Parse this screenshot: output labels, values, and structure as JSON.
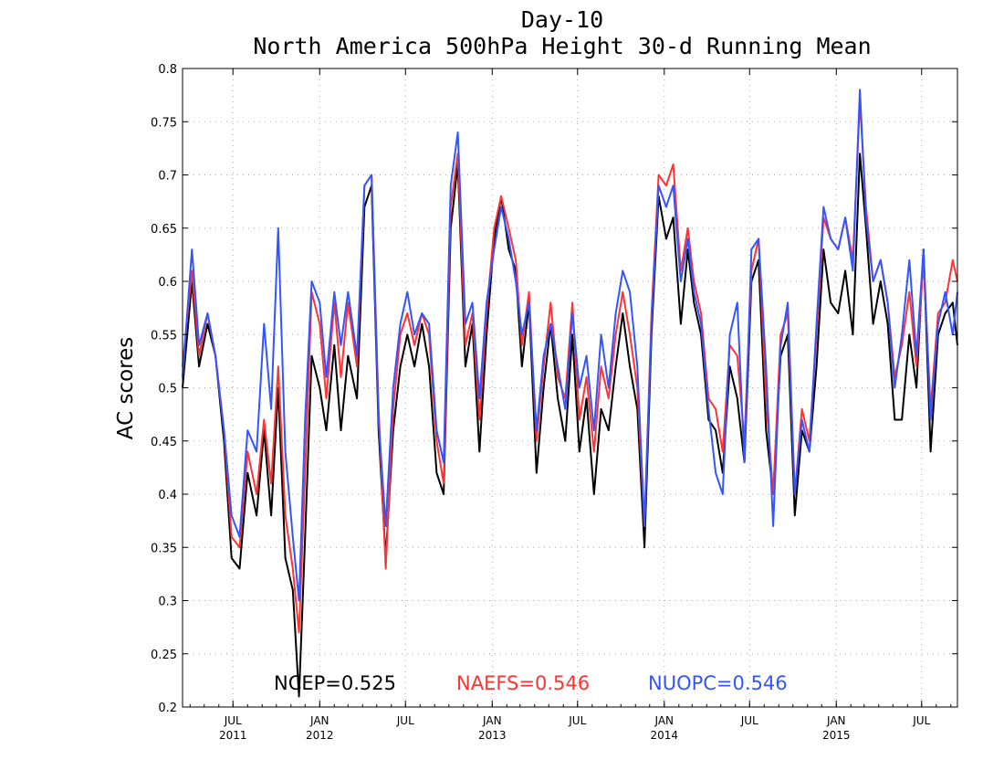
{
  "chart_data": {
    "type": "line",
    "title": "Day-10",
    "subtitle": "North America 500hPa Height 30-d Running Mean",
    "ylabel": "AC scores",
    "xlabel": "",
    "ylim": [
      0.2,
      0.8
    ],
    "y_ticks": [
      "0.2",
      "0.25",
      "0.3",
      "0.35",
      "0.4",
      "0.45",
      "0.5",
      "0.55",
      "0.6",
      "0.65",
      "0.7",
      "0.75",
      "0.8"
    ],
    "x_range": [
      "2011-03-16",
      "2015-09-15"
    ],
    "x_ticks": [
      {
        "date": "2011-07-01",
        "month": "JUL",
        "year": "2011"
      },
      {
        "date": "2012-01-01",
        "month": "JAN",
        "year": "2012"
      },
      {
        "date": "2012-07-01",
        "month": "JUL",
        "year": ""
      },
      {
        "date": "2013-01-01",
        "month": "JAN",
        "year": "2013"
      },
      {
        "date": "2013-07-01",
        "month": "JUL",
        "year": ""
      },
      {
        "date": "2014-01-01",
        "month": "JAN",
        "year": "2014"
      },
      {
        "date": "2014-07-01",
        "month": "JUL",
        "year": ""
      },
      {
        "date": "2015-01-01",
        "month": "JAN",
        "year": "2015"
      },
      {
        "date": "2015-07-01",
        "month": "JUL",
        "year": ""
      }
    ],
    "grid": true,
    "annotations": [
      {
        "text": "NCEP=0.525",
        "color": "#000000"
      },
      {
        "text": "NAEFS=0.546",
        "color": "#ff3333"
      },
      {
        "text": "NUOPC=0.546",
        "color": "#3355ff"
      }
    ],
    "x": [
      "2011-03-16",
      "2011-04-05",
      "2011-04-20",
      "2011-05-08",
      "2011-05-25",
      "2011-06-12",
      "2011-06-28",
      "2011-07-15",
      "2011-08-01",
      "2011-08-20",
      "2011-09-05",
      "2011-09-20",
      "2011-10-05",
      "2011-10-20",
      "2011-11-05",
      "2011-11-18",
      "2011-12-01",
      "2011-12-15",
      "2012-01-01",
      "2012-01-15",
      "2012-02-01",
      "2012-02-15",
      "2012-03-01",
      "2012-03-20",
      "2012-04-05",
      "2012-04-20",
      "2012-05-05",
      "2012-05-20",
      "2012-06-05",
      "2012-06-20",
      "2012-07-05",
      "2012-07-20",
      "2012-08-05",
      "2012-08-20",
      "2012-09-05",
      "2012-09-20",
      "2012-10-05",
      "2012-10-20",
      "2012-11-05",
      "2012-11-20",
      "2012-12-05",
      "2012-12-20",
      "2013-01-05",
      "2013-01-20",
      "2013-02-05",
      "2013-02-20",
      "2013-03-05",
      "2013-03-20",
      "2013-04-05",
      "2013-04-20",
      "2013-05-05",
      "2013-05-20",
      "2013-06-05",
      "2013-06-20",
      "2013-07-05",
      "2013-07-20",
      "2013-08-05",
      "2013-08-20",
      "2013-09-05",
      "2013-09-20",
      "2013-10-05",
      "2013-10-20",
      "2013-11-05",
      "2013-11-20",
      "2013-12-05",
      "2013-12-20",
      "2014-01-05",
      "2014-01-20",
      "2014-02-05",
      "2014-02-20",
      "2014-03-05",
      "2014-03-20",
      "2014-04-05",
      "2014-04-20",
      "2014-05-05",
      "2014-05-20",
      "2014-06-05",
      "2014-06-20",
      "2014-07-05",
      "2014-07-20",
      "2014-08-05",
      "2014-08-20",
      "2014-09-05",
      "2014-09-20",
      "2014-10-05",
      "2014-10-20",
      "2014-11-05",
      "2014-11-20",
      "2014-12-05",
      "2014-12-20",
      "2015-01-05",
      "2015-01-20",
      "2015-02-05",
      "2015-02-20",
      "2015-03-05",
      "2015-03-20",
      "2015-04-05",
      "2015-04-20",
      "2015-05-05",
      "2015-05-20",
      "2015-06-05",
      "2015-06-20",
      "2015-07-05",
      "2015-07-20",
      "2015-08-05",
      "2015-08-20",
      "2015-09-05",
      "2015-09-15"
    ],
    "series": [
      {
        "name": "NCEP",
        "color": "#000000",
        "values": [
          0.5,
          0.6,
          0.52,
          0.56,
          0.53,
          0.45,
          0.34,
          0.33,
          0.42,
          0.38,
          0.46,
          0.38,
          0.5,
          0.34,
          0.31,
          0.21,
          0.36,
          0.53,
          0.5,
          0.46,
          0.54,
          0.46,
          0.53,
          0.49,
          0.67,
          0.69,
          0.46,
          0.34,
          0.46,
          0.52,
          0.55,
          0.52,
          0.56,
          0.52,
          0.42,
          0.4,
          0.65,
          0.71,
          0.52,
          0.56,
          0.44,
          0.55,
          0.64,
          0.68,
          0.63,
          0.61,
          0.52,
          0.58,
          0.42,
          0.5,
          0.56,
          0.49,
          0.45,
          0.55,
          0.44,
          0.49,
          0.4,
          0.48,
          0.46,
          0.52,
          0.57,
          0.52,
          0.48,
          0.35,
          0.55,
          0.68,
          0.64,
          0.66,
          0.56,
          0.63,
          0.58,
          0.55,
          0.47,
          0.46,
          0.42,
          0.52,
          0.49,
          0.43,
          0.6,
          0.62,
          0.46,
          0.4,
          0.53,
          0.55,
          0.38,
          0.46,
          0.44,
          0.52,
          0.63,
          0.58,
          0.57,
          0.61,
          0.55,
          0.72,
          0.65,
          0.56,
          0.6,
          0.56,
          0.47,
          0.47,
          0.55,
          0.5,
          0.63,
          0.44,
          0.55,
          0.57,
          0.58,
          0.54
        ]
      },
      {
        "name": "NAEFS",
        "color": "#ff3333",
        "values": [
          0.52,
          0.61,
          0.53,
          0.57,
          0.53,
          0.46,
          0.36,
          0.35,
          0.44,
          0.4,
          0.47,
          0.41,
          0.52,
          0.38,
          0.33,
          0.27,
          0.42,
          0.59,
          0.56,
          0.49,
          0.58,
          0.51,
          0.58,
          0.52,
          0.69,
          0.7,
          0.48,
          0.33,
          0.48,
          0.55,
          0.57,
          0.54,
          0.57,
          0.55,
          0.45,
          0.41,
          0.67,
          0.72,
          0.54,
          0.57,
          0.47,
          0.57,
          0.65,
          0.68,
          0.65,
          0.62,
          0.54,
          0.59,
          0.45,
          0.52,
          0.58,
          0.51,
          0.49,
          0.58,
          0.47,
          0.51,
          0.44,
          0.52,
          0.49,
          0.55,
          0.59,
          0.55,
          0.5,
          0.37,
          0.57,
          0.7,
          0.69,
          0.71,
          0.61,
          0.65,
          0.6,
          0.57,
          0.49,
          0.48,
          0.44,
          0.54,
          0.53,
          0.45,
          0.61,
          0.64,
          0.49,
          0.4,
          0.55,
          0.57,
          0.4,
          0.48,
          0.45,
          0.55,
          0.66,
          0.64,
          0.63,
          0.66,
          0.62,
          0.77,
          0.67,
          0.6,
          0.62,
          0.58,
          0.51,
          0.54,
          0.59,
          0.52,
          0.62,
          0.48,
          0.57,
          0.58,
          0.62,
          0.6
        ]
      },
      {
        "name": "NUOPC",
        "color": "#3355ff",
        "values": [
          0.51,
          0.63,
          0.54,
          0.57,
          0.53,
          0.46,
          0.38,
          0.36,
          0.46,
          0.44,
          0.56,
          0.48,
          0.65,
          0.44,
          0.36,
          0.3,
          0.47,
          0.6,
          0.58,
          0.51,
          0.59,
          0.54,
          0.59,
          0.53,
          0.69,
          0.7,
          0.47,
          0.37,
          0.5,
          0.56,
          0.59,
          0.55,
          0.57,
          0.56,
          0.46,
          0.43,
          0.69,
          0.74,
          0.56,
          0.58,
          0.49,
          0.58,
          0.63,
          0.67,
          0.64,
          0.6,
          0.55,
          0.58,
          0.46,
          0.53,
          0.56,
          0.52,
          0.48,
          0.57,
          0.5,
          0.53,
          0.46,
          0.55,
          0.5,
          0.57,
          0.61,
          0.59,
          0.52,
          0.37,
          0.56,
          0.69,
          0.67,
          0.69,
          0.6,
          0.64,
          0.59,
          0.56,
          0.48,
          0.42,
          0.4,
          0.55,
          0.58,
          0.43,
          0.63,
          0.64,
          0.52,
          0.37,
          0.54,
          0.58,
          0.4,
          0.47,
          0.44,
          0.56,
          0.67,
          0.64,
          0.63,
          0.66,
          0.61,
          0.78,
          0.66,
          0.6,
          0.62,
          0.58,
          0.5,
          0.55,
          0.62,
          0.53,
          0.63,
          0.47,
          0.56,
          0.59,
          0.55,
          0.59
        ]
      }
    ]
  }
}
